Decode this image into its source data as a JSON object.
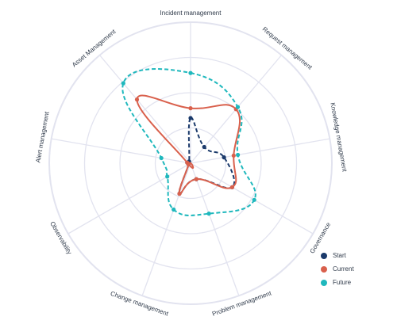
{
  "chart_data": {
    "type": "radar",
    "title": "",
    "axes": [
      "Incident management",
      "Request management",
      "Knowledge management",
      "Governance",
      "Problem management",
      "Change management",
      "Observability",
      "Alert management",
      "Asset Management"
    ],
    "rmax": 5,
    "rings": 4,
    "grid": true,
    "legend_position": "bottom-right",
    "series": [
      {
        "name": "Start",
        "color": "#1b3a6b",
        "dashed": true,
        "values": [
          1.6,
          0.75,
          1.2,
          1.7,
          0.6,
          1.15,
          0.08,
          0.12,
          0.08
        ]
      },
      {
        "name": "Current",
        "color": "#d9604c",
        "dashed": false,
        "values": [
          1.95,
          2.5,
          1.55,
          1.7,
          0.6,
          1.15,
          0.08,
          0.12,
          2.95
        ]
      },
      {
        "name": "Future",
        "color": "#1fb8bd",
        "dashed": true,
        "values": [
          3.2,
          2.6,
          1.7,
          2.6,
          1.9,
          1.75,
          0.95,
          1.05,
          3.7
        ]
      }
    ]
  }
}
